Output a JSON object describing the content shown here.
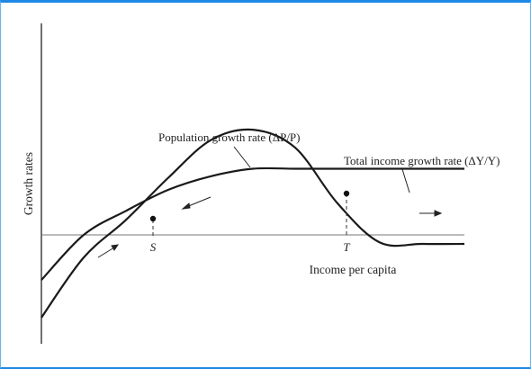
{
  "chart_data": {
    "type": "line",
    "title": "",
    "xlabel": "Income per capita",
    "ylabel": "Growth rates",
    "grid": false,
    "series": [
      {
        "name": "Population growth rate (ΔP/P)",
        "x": [
          0.0,
          0.1,
          0.2,
          0.3,
          0.4,
          0.5,
          0.6,
          0.7,
          0.8,
          0.9,
          1.0
        ],
        "values": [
          -0.55,
          -0.15,
          0.1,
          0.38,
          0.63,
          0.7,
          0.58,
          0.21,
          -0.05,
          -0.06,
          -0.06
        ]
      },
      {
        "name": "Total income growth rate (ΔY/Y)",
        "x": [
          0.0,
          0.1,
          0.2,
          0.3,
          0.4,
          0.5,
          0.6,
          0.7,
          0.8,
          0.9,
          1.0
        ],
        "values": [
          -0.3,
          0.0,
          0.16,
          0.3,
          0.39,
          0.44,
          0.44,
          0.44,
          0.44,
          0.44,
          0.44
        ]
      }
    ],
    "points": [
      {
        "label": "S",
        "x": 0.27,
        "y": 0.16
      },
      {
        "label": "T",
        "x": 0.73,
        "y": 0.44
      }
    ]
  }
}
